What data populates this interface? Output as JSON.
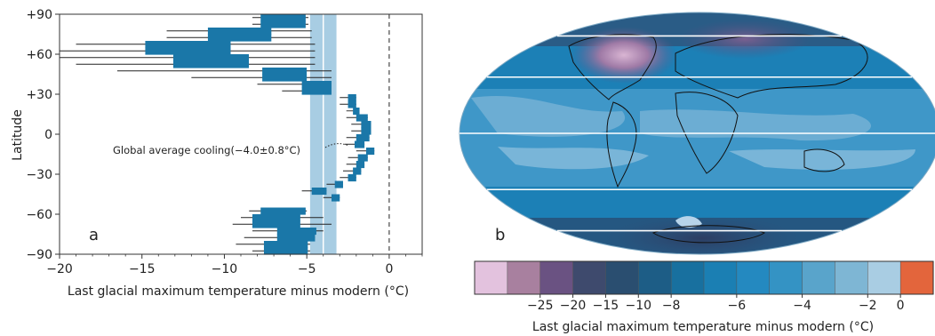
{
  "chart_data": [
    {
      "type": "bar",
      "orientation": "horizontal",
      "panel_label": "a",
      "xlabel": "Last glacial maximum temperature minus modern (°C)",
      "ylabel": "Latitude",
      "xlim": [
        -20,
        2
      ],
      "ylim": [
        -90,
        90
      ],
      "x_ticks": [
        -20,
        -15,
        -10,
        -5,
        0
      ],
      "x_tick_labels": [
        "−20",
        "−15",
        "−10",
        "−5",
        "0"
      ],
      "y_ticks": [
        90,
        60,
        30,
        0,
        -30,
        -60,
        -90
      ],
      "y_tick_labels": [
        "+90",
        "+60",
        "+30",
        "0",
        "−30",
        "−60",
        "−90"
      ],
      "bar_color": "#1a77a8",
      "band_color": "#a8cde3",
      "global_average": {
        "label": "Global average cooling(−4.0±0.8°C)",
        "value": -4.0,
        "uncertainty": 0.8
      },
      "bars": [
        {
          "lat": 87.5,
          "value": -7.8,
          "err_low": -8.3,
          "err_high": -4.9
        },
        {
          "lat": 82.5,
          "value": -7.8,
          "err_low": -8.3,
          "err_high": -4.9
        },
        {
          "lat": 77.5,
          "value": -11.0,
          "err_low": -13.5,
          "err_high": -4.7
        },
        {
          "lat": 72.5,
          "value": -11.0,
          "err_low": -13.5,
          "err_high": -4.7
        },
        {
          "lat": 67.5,
          "value": -14.8,
          "err_low": -19.0,
          "err_high": -4.5
        },
        {
          "lat": 62.5,
          "value": -14.8,
          "err_low": -20.0,
          "err_high": -4.5
        },
        {
          "lat": 57.5,
          "value": -13.1,
          "err_low": -20.0,
          "err_high": -4.5
        },
        {
          "lat": 52.5,
          "value": -13.1,
          "err_low": -19.0,
          "err_high": -4.5
        },
        {
          "lat": 47.5,
          "value": -7.7,
          "err_low": -16.5,
          "err_high": -3.5
        },
        {
          "lat": 42.5,
          "value": -7.7,
          "err_low": -12.0,
          "err_high": -3.5
        },
        {
          "lat": 37.5,
          "value": -5.3,
          "err_low": -8.0,
          "err_high": -3.5
        },
        {
          "lat": 32.5,
          "value": -5.3,
          "err_low": -6.5,
          "err_high": -3.5
        },
        {
          "lat": 27.5,
          "value": -2.5,
          "err_low": -3.0,
          "err_high": -2.0
        },
        {
          "lat": 22.5,
          "value": -2.5,
          "err_low": -3.0,
          "err_high": -2.0
        },
        {
          "lat": 17.5,
          "value": -2.2,
          "err_low": -2.6,
          "err_high": -1.8
        },
        {
          "lat": 12.5,
          "value": -2.0,
          "err_low": -2.6,
          "err_high": -1.3
        },
        {
          "lat": 7.5,
          "value": -1.7,
          "err_low": -2.3,
          "err_high": -1.1
        },
        {
          "lat": 2.5,
          "value": -1.7,
          "err_low": -2.3,
          "err_high": -1.1
        },
        {
          "lat": -2.5,
          "value": -2.0,
          "err_low": -2.6,
          "err_high": -1.2
        },
        {
          "lat": -7.5,
          "value": -2.1,
          "err_low": -2.7,
          "err_high": -1.5
        },
        {
          "lat": -12.5,
          "value": -1.4,
          "err_low": -2.0,
          "err_high": -0.9
        },
        {
          "lat": -17.5,
          "value": -1.9,
          "err_low": -2.5,
          "err_high": -1.3
        },
        {
          "lat": -22.5,
          "value": -2.0,
          "err_low": -2.6,
          "err_high": -1.5
        },
        {
          "lat": -27.5,
          "value": -2.2,
          "err_low": -2.8,
          "err_high": -1.7
        },
        {
          "lat": -32.5,
          "value": -2.5,
          "err_low": -3.0,
          "err_high": -2.0
        },
        {
          "lat": -37.5,
          "value": -3.3,
          "err_low": -3.8,
          "err_high": -2.8
        },
        {
          "lat": -42.5,
          "value": -4.7,
          "err_low": -5.3,
          "err_high": -3.8
        },
        {
          "lat": -47.5,
          "value": -3.5,
          "err_low": -4.0,
          "err_high": -3.0
        },
        {
          "lat": -57.5,
          "value": -7.8,
          "err_low": -8.5,
          "err_high": -5.0
        },
        {
          "lat": -62.5,
          "value": -8.3,
          "err_low": -9.0,
          "err_high": -4.0
        },
        {
          "lat": -67.5,
          "value": -8.3,
          "err_low": -9.5,
          "err_high": -3.5
        },
        {
          "lat": -72.5,
          "value": -6.8,
          "err_low": -8.3,
          "err_high": -4.0
        },
        {
          "lat": -77.5,
          "value": -6.8,
          "err_low": -8.8,
          "err_high": -4.5
        },
        {
          "lat": -82.5,
          "value": -7.6,
          "err_low": -9.3,
          "err_high": -4.8
        },
        {
          "lat": -87.5,
          "value": -7.6,
          "err_low": -8.3,
          "err_high": -4.8
        }
      ]
    },
    {
      "type": "heatmap",
      "projection": "Mollweide (world map)",
      "panel_label": "b",
      "colorbar_label": "Last glacial maximum temperature minus modern (°C)",
      "colorbar_tick_labels": [
        "−25",
        "−20",
        "−15",
        "−10",
        "−8",
        "−6",
        "−4",
        "−2",
        "0"
      ],
      "colorbar_colors": [
        "#e3c2de",
        "#a8809f",
        "#6a5282",
        "#3e4a6d",
        "#2a4e70",
        "#1d5d86",
        "#18709f",
        "#1b7fb3",
        "#2489c0",
        "#3493c4",
        "#59a4cb",
        "#7eb6d4",
        "#a9cde3",
        "#e3653c"
      ],
      "latitude_lines": [
        60,
        30,
        0,
        -30,
        -60
      ]
    }
  ]
}
